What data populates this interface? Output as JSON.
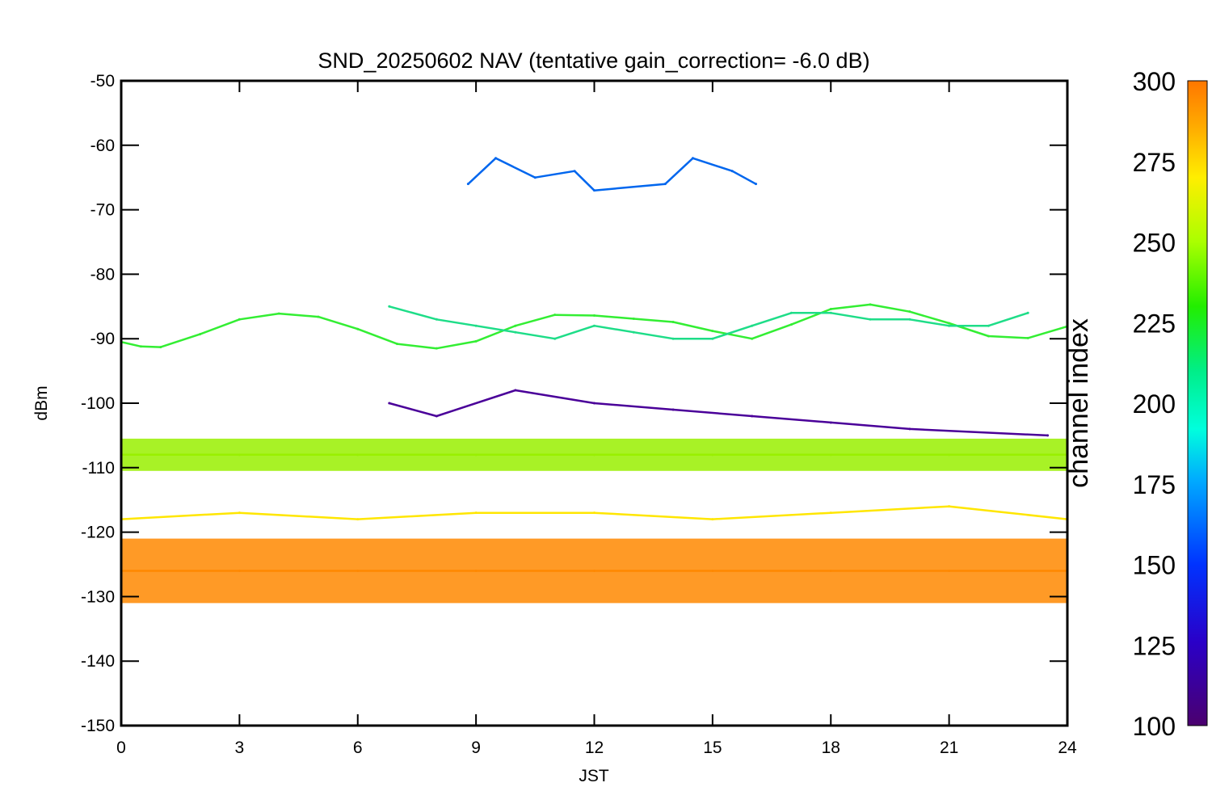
{
  "chart_data": {
    "type": "line",
    "title": "SND_20250602 NAV (tentative gain_correction= -6.0 dB)",
    "xlabel": "JST",
    "ylabel": "dBm",
    "xlim": [
      0,
      24
    ],
    "ylim": [
      -150,
      -50
    ],
    "xticks": [
      0,
      3,
      6,
      9,
      12,
      15,
      18,
      21,
      24
    ],
    "yticks": [
      -50,
      -60,
      -70,
      -80,
      -90,
      -100,
      -110,
      -120,
      -130,
      -140,
      -150
    ],
    "colorbar": {
      "title": "channel index",
      "range": [
        100,
        300
      ],
      "ticks": [
        300,
        275,
        250,
        225,
        200,
        175,
        150,
        125,
        100
      ]
    },
    "series": [
      {
        "color": "#ff8800",
        "channel_index": 290,
        "x": [
          0,
          3,
          6,
          9,
          12,
          15,
          18,
          21,
          24
        ],
        "y": [
          -126,
          -126,
          -126,
          -126,
          -126,
          -126,
          -126,
          -126,
          -126
        ],
        "band": [
          -131,
          -121
        ]
      },
      {
        "color": "#ffe600",
        "channel_index": 270,
        "x": [
          0,
          3,
          6,
          9,
          12,
          15,
          18,
          21,
          24
        ],
        "y": [
          -118,
          -117,
          -118,
          -117,
          -117,
          -118,
          -117,
          -116,
          -118
        ]
      },
      {
        "color": "#99f000",
        "channel_index": 255,
        "x": [
          0,
          3,
          6,
          9,
          12,
          15,
          18,
          21,
          24
        ],
        "y": [
          -108,
          -108,
          -108,
          -108,
          -108,
          -108,
          -108,
          -108,
          -108
        ],
        "band": [
          -110.5,
          -105.5
        ]
      },
      {
        "color": "#33ee33",
        "channel_index": 235,
        "x": [
          0,
          0.5,
          1,
          2,
          3,
          4,
          5,
          6,
          7,
          8,
          9,
          10,
          11,
          12,
          13,
          14,
          15,
          16,
          17,
          18,
          19,
          20,
          21,
          22,
          23,
          24
        ],
        "y": [
          -90.5,
          -91.2,
          -91.3,
          -89.3,
          -87,
          -86.1,
          -86.6,
          -88.5,
          -90.8,
          -91.5,
          -90.4,
          -88,
          -86.3,
          -86.4,
          -86.9,
          -87.4,
          -88.8,
          -90,
          -87.8,
          -85.4,
          -84.7,
          -85.8,
          -87.6,
          -89.6,
          -89.9,
          -88.1
        ]
      },
      {
        "color": "#1edd88",
        "channel_index": 215,
        "x": [
          6.8,
          8,
          9,
          10,
          11,
          12,
          13,
          14,
          15,
          16,
          17,
          18,
          19,
          20,
          21,
          22,
          23
        ],
        "y": [
          -85,
          -87,
          -88,
          -89,
          -90,
          -88,
          -89,
          -90,
          -90,
          -88,
          -86,
          -86,
          -87,
          -87,
          -88,
          -88,
          -86
        ]
      },
      {
        "color": "#0066ee",
        "channel_index": 150,
        "x": [
          8.8,
          9.5,
          10.5,
          11.5,
          12.0,
          13.8,
          14.5,
          15.5,
          16.1
        ],
        "y": [
          -66,
          -62,
          -65,
          -64,
          -67,
          -66,
          -62,
          -64,
          -66
        ]
      },
      {
        "color": "#4a0099",
        "channel_index": 110,
        "x": [
          6.8,
          8,
          10,
          12,
          14,
          16,
          18,
          20,
          23.5
        ],
        "y": [
          -100,
          -102,
          -98,
          -100,
          -101,
          -102,
          -103,
          -104,
          -105
        ]
      }
    ]
  }
}
